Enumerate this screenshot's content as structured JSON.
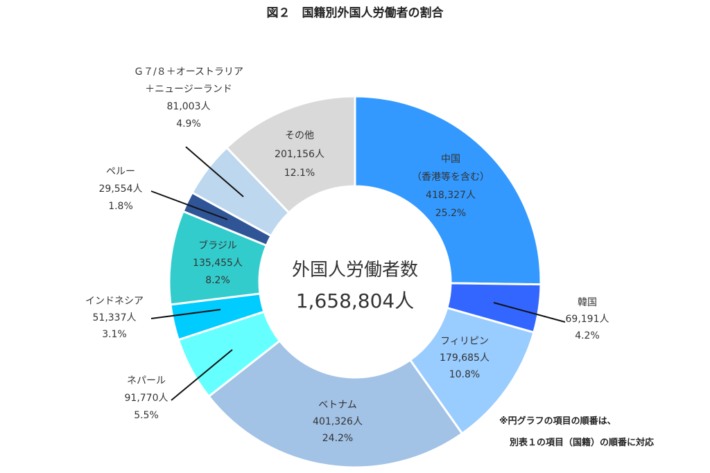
{
  "chart_data": {
    "type": "pie",
    "title": "図２　国籍別外国人労働者の割合",
    "center": {
      "title": "外国人労働者数",
      "total": "1,658,804人"
    },
    "total_value": 1658804,
    "order": "clockwise from top",
    "slices": [
      {
        "id": "china",
        "lines": [
          "中国",
          "（香港等を含む）"
        ],
        "count_text": "418,327人",
        "pct_text": "25.2%",
        "value": 418327,
        "percent": 25.2,
        "color": "#3399ff",
        "label": "inside"
      },
      {
        "id": "korea",
        "lines": [
          "韓国"
        ],
        "count_text": "69,191人",
        "pct_text": "4.2%",
        "value": 69191,
        "percent": 4.2,
        "color": "#3366ff",
        "label": "outside-right"
      },
      {
        "id": "philippines",
        "lines": [
          "フィリピン"
        ],
        "count_text": "179,685人",
        "pct_text": "10.8%",
        "value": 179685,
        "percent": 10.8,
        "color": "#99ccff",
        "label": "inside"
      },
      {
        "id": "vietnam",
        "lines": [
          "ベトナム"
        ],
        "count_text": "401,326人",
        "pct_text": "24.2%",
        "value": 401326,
        "percent": 24.2,
        "color": "#a2c2e6",
        "label": "inside"
      },
      {
        "id": "nepal",
        "lines": [
          "ネパール"
        ],
        "count_text": "91,770人",
        "pct_text": "5.5%",
        "value": 91770,
        "percent": 5.5,
        "color": "#66ffff",
        "label": "outside-left"
      },
      {
        "id": "indonesia",
        "lines": [
          "インドネシア"
        ],
        "count_text": "51,337人",
        "pct_text": "3.1%",
        "value": 51337,
        "percent": 3.1,
        "color": "#00ccff",
        "label": "outside-left"
      },
      {
        "id": "brazil",
        "lines": [
          "ブラジル"
        ],
        "count_text": "135,455人",
        "pct_text": "8.2%",
        "value": 135455,
        "percent": 8.2,
        "color": "#33cccc",
        "label": "inside"
      },
      {
        "id": "peru",
        "lines": [
          "ペルー"
        ],
        "count_text": "29,554人",
        "pct_text": "1.8%",
        "value": 29554,
        "percent": 1.8,
        "color": "#2f5597",
        "label": "outside-left"
      },
      {
        "id": "g78",
        "lines": [
          "Ｇ７/８＋オーストラリア",
          "＋ニュージーランド"
        ],
        "count_text": "81,003人",
        "pct_text": "4.9%",
        "value": 81003,
        "percent": 4.9,
        "color": "#bdd7ee",
        "label": "outside-left"
      },
      {
        "id": "other",
        "lines": [
          "その他"
        ],
        "count_text": "201,156人",
        "pct_text": "12.1%",
        "value": 201156,
        "percent": 12.1,
        "color": "#d9d9d9",
        "label": "inside"
      }
    ],
    "note_lines": [
      "※円グラフの項目の順番は、",
      "別表１の項目（国籍）の順番に対応"
    ]
  }
}
